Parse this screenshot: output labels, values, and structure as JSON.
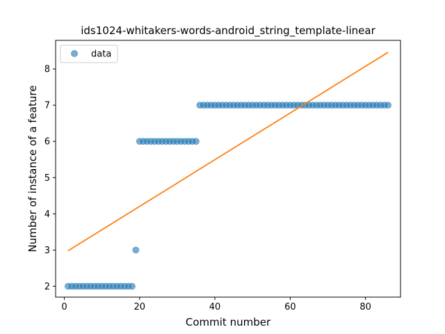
{
  "chart_data": {
    "type": "scatter",
    "title": "ids1024-whitakers-words-android_string_template-linear",
    "xlabel": "Commit number",
    "ylabel": "Number of instance of a feature",
    "xlim": [
      -2.3,
      89.3
    ],
    "ylim": [
      1.7,
      8.79
    ],
    "xticks": [
      0,
      20,
      40,
      60,
      80
    ],
    "yticks": [
      2,
      3,
      4,
      5,
      6,
      7,
      8
    ],
    "grid": false,
    "legend": {
      "placement": "top-left",
      "entries": [
        "data"
      ]
    },
    "series": [
      {
        "name": "data",
        "kind": "scatter",
        "color": "#1f77b4",
        "x": [
          1,
          2,
          3,
          4,
          5,
          6,
          7,
          8,
          9,
          10,
          11,
          12,
          13,
          14,
          15,
          16,
          17,
          18,
          19,
          20,
          21,
          22,
          23,
          24,
          25,
          26,
          27,
          28,
          29,
          30,
          31,
          32,
          33,
          34,
          35,
          36,
          37,
          38,
          39,
          40,
          41,
          42,
          43,
          44,
          45,
          46,
          47,
          48,
          49,
          50,
          51,
          52,
          53,
          54,
          55,
          56,
          57,
          58,
          59,
          60,
          61,
          62,
          63,
          64,
          65,
          66,
          67,
          68,
          69,
          70,
          71,
          72,
          73,
          74,
          75,
          76,
          77,
          78,
          79,
          80,
          81,
          82,
          83,
          84,
          85,
          86
        ],
        "y": [
          2,
          2,
          2,
          2,
          2,
          2,
          2,
          2,
          2,
          2,
          2,
          2,
          2,
          2,
          2,
          2,
          2,
          2,
          3,
          6,
          6,
          6,
          6,
          6,
          6,
          6,
          6,
          6,
          6,
          6,
          6,
          6,
          6,
          6,
          6,
          7,
          7,
          7,
          7,
          7,
          7,
          7,
          7,
          7,
          7,
          7,
          7,
          7,
          7,
          7,
          7,
          7,
          7,
          7,
          7,
          7,
          7,
          7,
          7,
          7,
          7,
          7,
          7,
          7,
          7,
          7,
          7,
          7,
          7,
          7,
          7,
          7,
          7,
          7,
          7,
          7,
          7,
          7,
          7,
          7,
          7,
          7,
          7,
          7,
          7,
          7
        ]
      },
      {
        "kind": "line",
        "color": "#ff7f0e",
        "x": [
          1,
          86
        ],
        "y": [
          2.98,
          8.46
        ]
      }
    ]
  }
}
